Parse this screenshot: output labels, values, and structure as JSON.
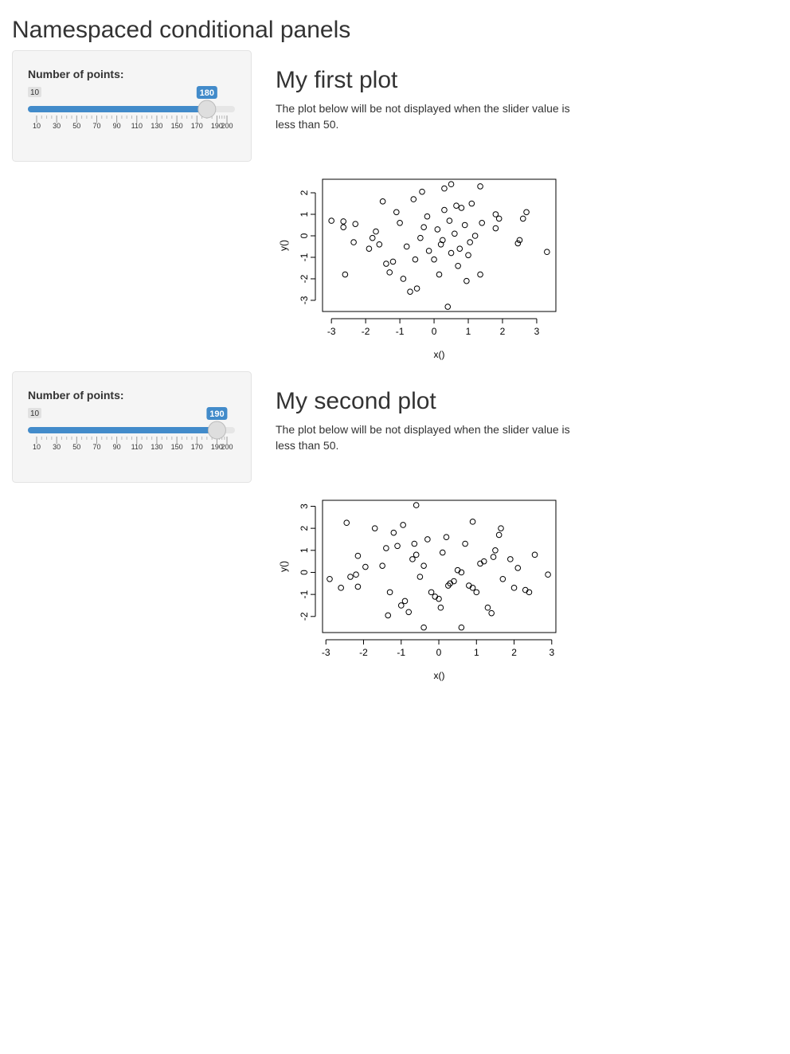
{
  "title": "Namespaced conditional panels",
  "panels": [
    {
      "slider": {
        "label": "Number of points:",
        "min": 10,
        "max": 200,
        "value": 180,
        "ticks": [
          10,
          30,
          50,
          70,
          90,
          110,
          130,
          150,
          170,
          190,
          200
        ]
      },
      "heading": "My first plot",
      "text": "The plot below will be not displayed when the slider value is less than 50.",
      "plot": {
        "type": "scatter",
        "xlabel": "x()",
        "ylabel": "y()",
        "xlim": [
          -3.26,
          3.56
        ],
        "ylim": [
          -3.52,
          2.63
        ],
        "xticks": [
          -3,
          -2,
          -1,
          0,
          1,
          2,
          3
        ],
        "yticks": [
          -3,
          -2,
          -1,
          0,
          1,
          2
        ],
        "x": [
          -3.0,
          -2.65,
          -2.65,
          -2.3,
          -2.35,
          -2.6,
          3.3,
          2.7,
          2.6,
          2.5,
          2.45,
          1.35,
          0.5,
          0.3,
          -0.35,
          0.4,
          -0.7,
          -0.5,
          1.8,
          1.9,
          1.8,
          1.35,
          -1.3,
          -1.9,
          -1.7,
          -1.5,
          -1.2,
          -1.0,
          -0.8,
          -0.6,
          -0.4,
          -0.2,
          0.0,
          0.1,
          0.2,
          0.3,
          0.5,
          0.6,
          0.7,
          0.8,
          0.9,
          1.0,
          1.1,
          1.2,
          -1.8,
          -1.4,
          -1.1,
          -0.9,
          -0.3,
          0.15,
          0.45,
          0.75,
          1.05,
          1.4,
          -0.55,
          0.25,
          0.65,
          -0.15,
          0.95,
          -1.6
        ],
        "y": [
          0.7,
          0.67,
          0.4,
          0.55,
          -0.3,
          -1.8,
          -0.75,
          1.1,
          0.8,
          -0.2,
          -0.35,
          2.3,
          2.4,
          2.2,
          2.05,
          -3.3,
          -2.6,
          -2.45,
          0.35,
          0.8,
          1.0,
          -1.8,
          -1.7,
          -0.6,
          0.2,
          1.6,
          -1.2,
          0.6,
          -0.5,
          1.7,
          -0.1,
          0.9,
          -1.1,
          0.3,
          -0.4,
          1.2,
          -0.8,
          0.1,
          -1.4,
          1.3,
          0.5,
          -0.9,
          1.5,
          0.0,
          -0.1,
          -1.3,
          1.1,
          -2.0,
          0.4,
          -1.8,
          0.7,
          -0.6,
          -0.3,
          0.6,
          -1.1,
          -0.2,
          1.4,
          -0.7,
          -2.1,
          -0.4
        ]
      }
    },
    {
      "slider": {
        "label": "Number of points:",
        "min": 10,
        "max": 200,
        "value": 190,
        "ticks": [
          10,
          30,
          50,
          70,
          90,
          110,
          130,
          150,
          170,
          190,
          200
        ]
      },
      "heading": "My second plot",
      "text": "The plot below will be not displayed when the slider value is less than 50.",
      "plot": {
        "type": "scatter",
        "xlabel": "x()",
        "ylabel": "y()",
        "xlim": [
          -3.09,
          3.11
        ],
        "ylim": [
          -2.73,
          3.27
        ],
        "xticks": [
          -3,
          -2,
          -1,
          0,
          1,
          2,
          3
        ],
        "yticks": [
          -2,
          -1,
          0,
          1,
          2,
          3
        ],
        "x": [
          -2.9,
          -2.6,
          -2.45,
          -2.35,
          -2.2,
          -2.15,
          -1.95,
          -2.15,
          -0.6,
          -0.4,
          0.6,
          2.9,
          2.55,
          2.3,
          2.4,
          1.65,
          0.9,
          -1.35,
          1.4,
          -1.7,
          -0.95,
          -1.5,
          -1.3,
          -1.1,
          -0.9,
          -0.7,
          -0.5,
          -0.3,
          -0.1,
          0.1,
          0.3,
          0.5,
          0.7,
          0.9,
          1.1,
          1.3,
          1.5,
          1.7,
          1.9,
          2.1,
          -1.4,
          -1.0,
          -0.6,
          -0.2,
          0.2,
          0.4,
          0.8,
          1.2,
          1.6,
          2.0,
          -0.8,
          -0.4,
          0.0,
          0.6,
          1.0,
          -1.2,
          0.25,
          -0.65,
          1.45,
          0.05
        ],
        "y": [
          -0.3,
          -0.7,
          2.25,
          -0.2,
          -0.1,
          0.75,
          0.25,
          -0.65,
          3.05,
          -2.5,
          -2.5,
          -0.1,
          0.8,
          -0.8,
          -0.9,
          2.0,
          2.3,
          -1.95,
          -1.85,
          2.0,
          2.15,
          0.3,
          -0.9,
          1.2,
          -1.3,
          0.6,
          -0.2,
          1.5,
          -1.1,
          0.9,
          -0.5,
          0.1,
          1.3,
          -0.7,
          0.4,
          -1.6,
          1.0,
          -0.3,
          0.6,
          0.2,
          1.1,
          -1.5,
          0.8,
          -0.9,
          1.6,
          -0.4,
          -0.6,
          0.5,
          1.7,
          -0.7,
          -1.8,
          0.3,
          -1.2,
          0.0,
          -0.9,
          1.8,
          -0.6,
          1.3,
          0.7,
          -1.6
        ]
      }
    }
  ]
}
